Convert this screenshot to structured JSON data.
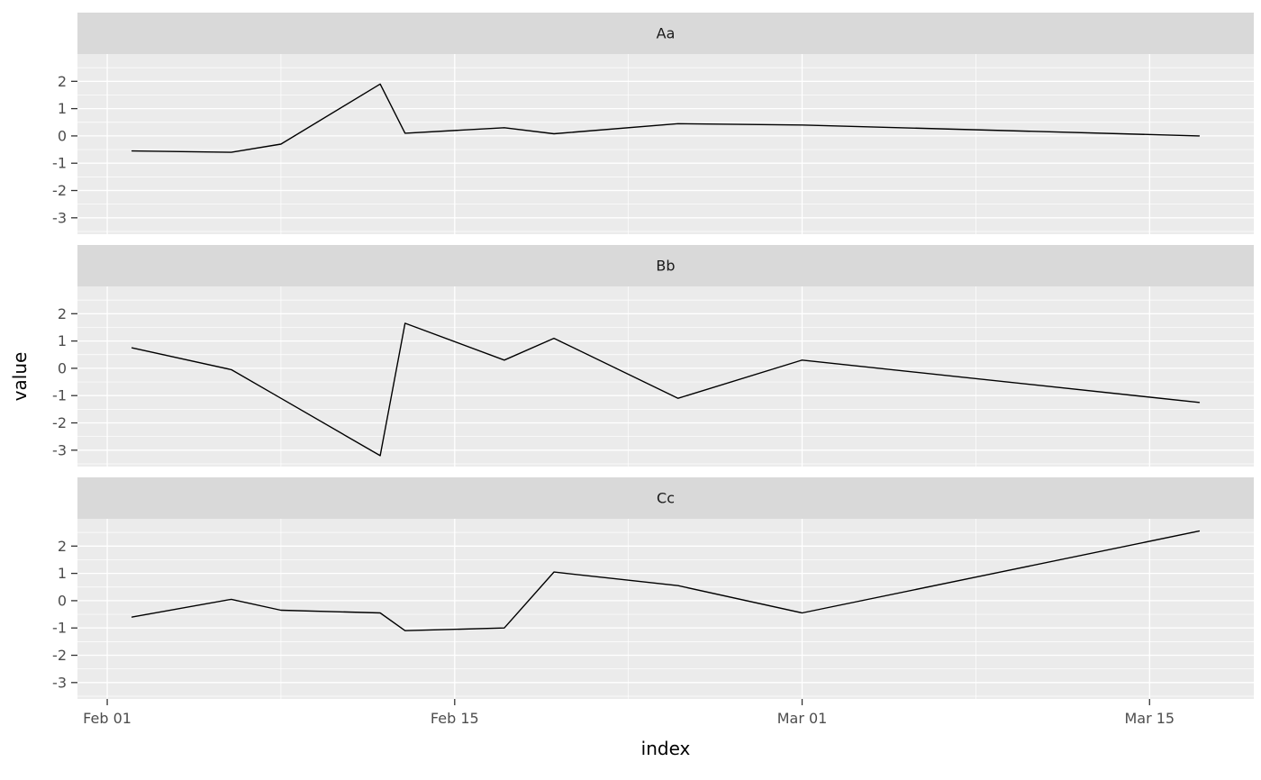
{
  "chart_data": {
    "type": "line",
    "title": "",
    "xlabel": "index",
    "ylabel": "value",
    "x_dates": [
      "Feb 02",
      "Feb 06",
      "Feb 08",
      "Feb 12",
      "Feb 13",
      "Feb 17",
      "Feb 19",
      "Feb 24",
      "Mar 01",
      "Mar 17"
    ],
    "x_days_from_feb01": [
      1,
      5,
      7,
      11,
      12,
      16,
      18,
      23,
      28,
      44
    ],
    "facets": [
      {
        "label": "Aa",
        "values": [
          -0.55,
          -0.6,
          -0.3,
          1.9,
          0.1,
          0.3,
          0.08,
          0.45,
          0.4,
          0.0
        ]
      },
      {
        "label": "Bb",
        "values": [
          0.75,
          -0.05,
          -1.1,
          -3.2,
          1.65,
          0.3,
          1.1,
          -1.1,
          0.3,
          -1.25
        ]
      },
      {
        "label": "Cc",
        "values": [
          -0.6,
          0.05,
          -0.35,
          -0.45,
          -1.1,
          -1.0,
          1.05,
          0.55,
          -0.45,
          2.55
        ]
      }
    ],
    "x_ticks": [
      {
        "day": 0,
        "label": "Feb 01"
      },
      {
        "day": 14,
        "label": "Feb 15"
      },
      {
        "day": 28,
        "label": "Mar 01"
      },
      {
        "day": 42,
        "label": "Mar 15"
      }
    ],
    "x_minor_days": [
      7,
      21,
      35
    ],
    "y_ticks": [
      2,
      1,
      0,
      -1,
      -2,
      -3
    ],
    "y_minor": [
      2.5,
      1.5,
      0.5,
      -0.5,
      -1.5,
      -2.5,
      -3.5
    ],
    "xlim": [
      -1.2,
      46.2
    ],
    "ylim": [
      -3.6,
      3.0
    ],
    "legend": "none",
    "grid": "on",
    "colors": {
      "panel_bg": "#EBEBEB",
      "strip_bg": "#D9D9D9",
      "grid_major": "#FFFFFF",
      "grid_minor": "#FFFFFF",
      "series_line": "#000000",
      "tick_mark": "#333333",
      "tick_text": "#4D4D4D",
      "strip_text": "#1A1A1A",
      "axis_title": "#000000"
    }
  }
}
